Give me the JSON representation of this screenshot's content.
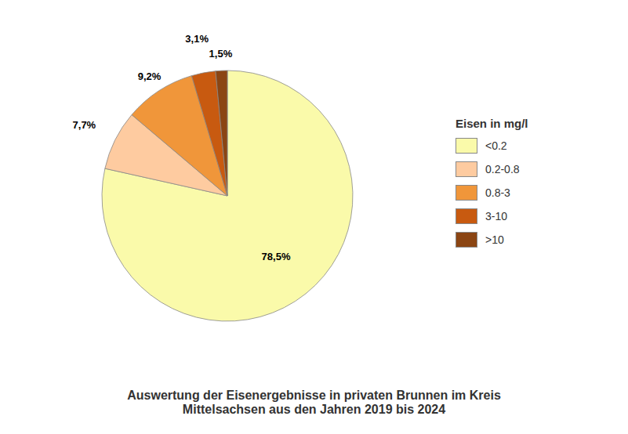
{
  "chart_data": {
    "type": "pie",
    "title": "Auswertung der Eisenergebnisse in privaten Brunnen im Kreis\nMittelsachsen aus den Jahren 2019 bis 2024",
    "categories": [
      "<0.2",
      "0.2-0.8",
      "0.8-3",
      "3-10",
      ">10"
    ],
    "values": [
      78.5,
      7.7,
      9.2,
      3.1,
      1.5
    ],
    "value_labels": [
      "78,5%",
      "7,7%",
      "9,2%",
      "3,1%",
      "1,5%"
    ],
    "data_labels": true,
    "colors": [
      "#FAFAAA",
      "#FECBA0",
      "#F0963A",
      "#C85A10",
      "#8B4513"
    ],
    "legend_title": "Eisen in mg/l",
    "legend": "right"
  }
}
